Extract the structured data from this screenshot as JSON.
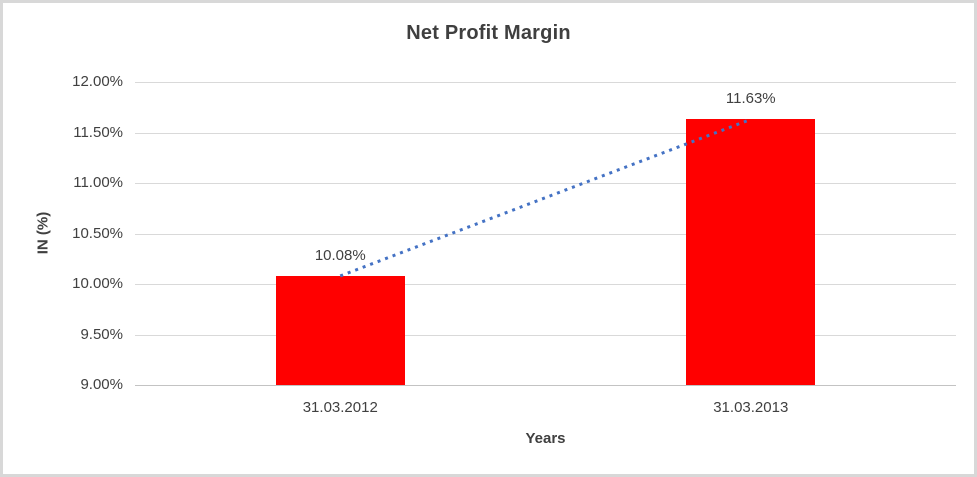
{
  "chart_data": {
    "type": "bar",
    "title": "Net Profit Margin",
    "xlabel": "Years",
    "ylabel": "IN (%)",
    "categories": [
      "31.03.2012",
      "31.03.2013"
    ],
    "values": [
      10.08,
      11.63
    ],
    "data_labels": [
      "10.08%",
      "11.63%"
    ],
    "ylim": [
      9,
      12
    ],
    "ytick_step": 0.5,
    "ytick_labels_top_to_bottom": [
      "12.00%",
      "11.50%",
      "11.00%",
      "10.50%",
      "10.00%",
      "9.50%",
      "9.00%"
    ],
    "grid": true,
    "legend_position": "none",
    "bar_color": "#FF0000",
    "trendline": {
      "style": "dotted",
      "color": "#4472C4",
      "connects": [
        "top of 31.03.2012 bar",
        "top of 31.03.2013 bar"
      ]
    },
    "colors": {
      "title_text": "#3F3F3F",
      "axis_text": "#404040",
      "gridline": "#D9D9D9",
      "frame_border": "#D8D8D8",
      "background": "#FFFFFF"
    }
  }
}
